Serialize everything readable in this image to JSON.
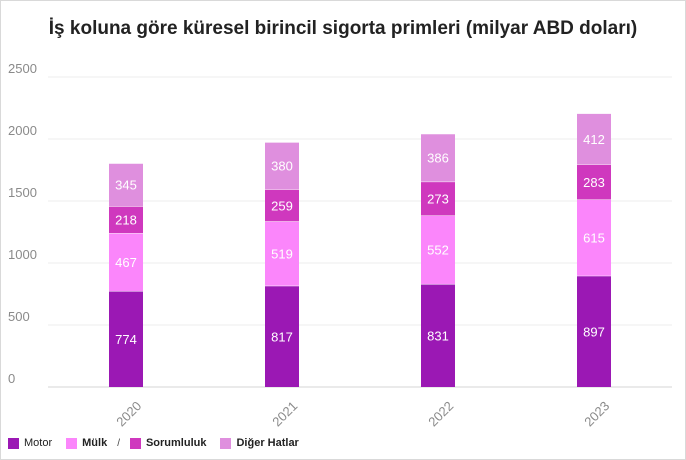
{
  "chart_data": {
    "type": "bar",
    "stacked": true,
    "title": "İş koluna göre küresel birincil sigorta primleri (milyar ABD doları)",
    "categories": [
      "2020",
      "2021",
      "2022",
      "2023"
    ],
    "series": [
      {
        "name": "Motor",
        "color": "#9b18b4",
        "values": [
          774,
          817,
          831,
          897
        ]
      },
      {
        "name": "Mülk",
        "color": "#fb86fb",
        "values": [
          467,
          519,
          552,
          615
        ]
      },
      {
        "name": "Sorumluluk",
        "color": "#cf38be",
        "values": [
          218,
          259,
          273,
          283
        ]
      },
      {
        "name": "Diğer Hatlar",
        "color": "#df8fde",
        "values": [
          345,
          380,
          386,
          412
        ]
      }
    ],
    "yticks": [
      "0",
      "500",
      "1000",
      "1500",
      "2000",
      "2500"
    ],
    "ylim": [
      0,
      2500
    ],
    "grid": true,
    "legend_position": "bottom-left",
    "xlabel": "",
    "ylabel": ""
  },
  "legend": {
    "items": [
      {
        "label": "Motor",
        "color": "#9b18b4",
        "bold": false
      },
      {
        "label": "Mülk",
        "color": "#fb86fb",
        "bold": true
      },
      {
        "label": "Sorumluluk",
        "color": "#cf38be",
        "bold": true
      },
      {
        "label": "Diğer Hatlar",
        "color": "#df8fde",
        "bold": true
      }
    ],
    "separator": "/"
  }
}
